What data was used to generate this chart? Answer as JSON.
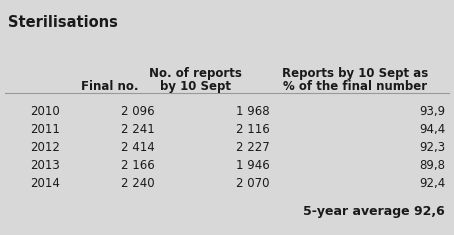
{
  "title": "Sterilisations",
  "rows": [
    [
      "2010",
      "2 096",
      "1 968",
      "93,9"
    ],
    [
      "2011",
      "2 241",
      "2 116",
      "94,4"
    ],
    [
      "2012",
      "2 414",
      "2 227",
      "92,3"
    ],
    [
      "2013",
      "2 166",
      "1 946",
      "89,8"
    ],
    [
      "2014",
      "2 240",
      "2 070",
      "92,4"
    ]
  ],
  "footer": "5-year average 92,6",
  "bg_color": "#d8d8d8",
  "text_color": "#1a1a1a",
  "fig_width": 4.54,
  "fig_height": 2.35,
  "dpi": 100
}
